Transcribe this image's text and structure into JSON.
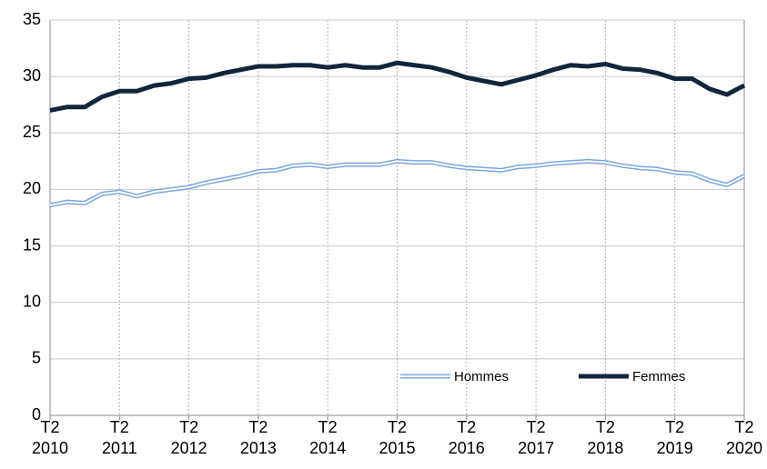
{
  "chart_data": {
    "type": "line",
    "categories": [
      "T2\n2010",
      null,
      null,
      null,
      "T2\n2011",
      null,
      null,
      null,
      "T2\n2012",
      null,
      null,
      null,
      "T2\n2013",
      null,
      null,
      null,
      "T2\n2014",
      null,
      null,
      null,
      "T2\n2015",
      null,
      null,
      null,
      "T2\n2016",
      null,
      null,
      null,
      "T2\n2017",
      null,
      null,
      null,
      "T2\n2018",
      null,
      null,
      null,
      "T2\n2019",
      null,
      null,
      null,
      "T2\n2020"
    ],
    "series": [
      {
        "name": "Hommes",
        "color": "#7aa6dc",
        "style": "double",
        "values": [
          18.6,
          18.9,
          18.8,
          19.6,
          19.8,
          19.4,
          19.8,
          20.0,
          20.2,
          20.6,
          20.9,
          21.2,
          21.6,
          21.7,
          22.1,
          22.2,
          22.0,
          22.2,
          22.2,
          22.2,
          22.5,
          22.4,
          22.4,
          22.1,
          21.9,
          21.8,
          21.7,
          22.0,
          22.1,
          22.3,
          22.4,
          22.5,
          22.4,
          22.1,
          21.9,
          21.8,
          21.5,
          21.4,
          20.8,
          20.4,
          21.2
        ]
      },
      {
        "name": "Femmes",
        "color": "#14243b",
        "style": "solid",
        "values": [
          27.0,
          27.3,
          27.3,
          28.2,
          28.7,
          28.7,
          29.2,
          29.4,
          29.8,
          29.9,
          30.3,
          30.6,
          30.9,
          30.9,
          31.0,
          31.0,
          30.8,
          31.0,
          30.8,
          30.8,
          31.2,
          31.0,
          30.8,
          30.4,
          29.9,
          29.6,
          29.3,
          29.7,
          30.1,
          30.6,
          31.0,
          30.9,
          31.1,
          30.7,
          30.6,
          30.3,
          29.8,
          29.8,
          28.9,
          28.4,
          29.2
        ]
      }
    ],
    "ylim": [
      0,
      35
    ],
    "yticks": [
      0,
      5,
      10,
      15,
      20,
      25,
      30,
      35
    ],
    "grid": true,
    "legend": "bottom-right"
  }
}
